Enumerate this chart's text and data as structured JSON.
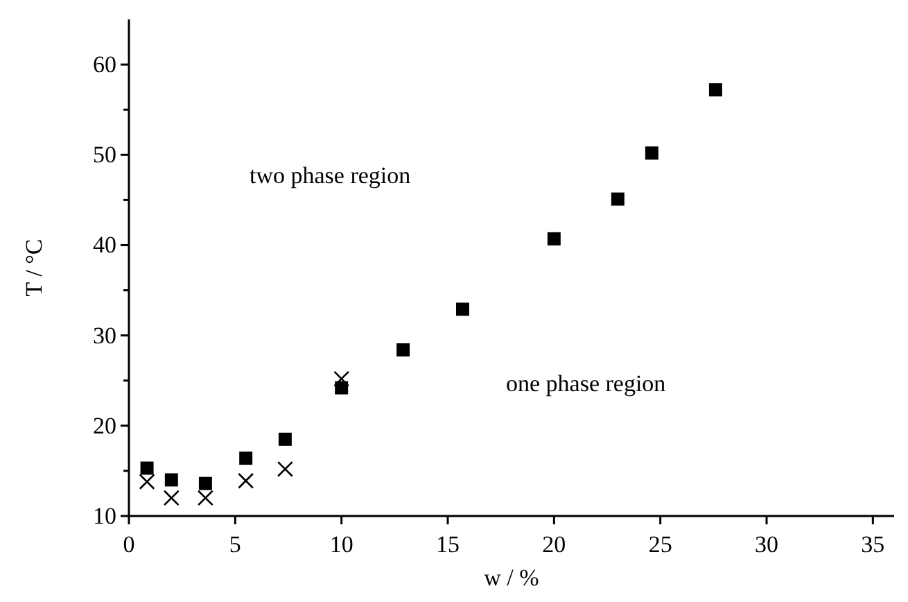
{
  "chart_data": {
    "type": "scatter",
    "xlabel": "w / %",
    "ylabel": "T / °C",
    "xlim": [
      0,
      36
    ],
    "xticks": [
      0,
      5,
      10,
      15,
      20,
      25,
      30,
      35
    ],
    "ylim": [
      10,
      65
    ],
    "yticks": [
      10,
      {
        "value": 15,
        "label": null
      },
      20,
      {
        "value": 25,
        "label": null
      },
      30,
      {
        "value": 35,
        "label": null
      },
      40,
      {
        "value": 45,
        "label": null
      },
      50,
      {
        "value": 55,
        "label": null
      },
      60
    ],
    "grid": false,
    "annotations": [
      "two phase region",
      "one phase region"
    ],
    "series": [
      {
        "color": "#000000",
        "marker": "square",
        "x": [
          0.85,
          2.0,
          3.6,
          5.5,
          7.35,
          10.0,
          12.9,
          15.7,
          20.0,
          23.0,
          24.6,
          27.6
        ],
        "values": [
          15.3,
          14.0,
          13.6,
          16.4,
          18.5,
          24.2,
          28.4,
          32.9,
          40.7,
          45.1,
          50.2,
          57.2
        ]
      },
      {
        "color": "#000000",
        "marker": "cross",
        "x": [
          0.85,
          2.0,
          3.6,
          5.5,
          7.35,
          10.0
        ],
        "values": [
          13.8,
          12.0,
          12.0,
          13.9,
          15.2,
          25.2
        ]
      }
    ]
  }
}
